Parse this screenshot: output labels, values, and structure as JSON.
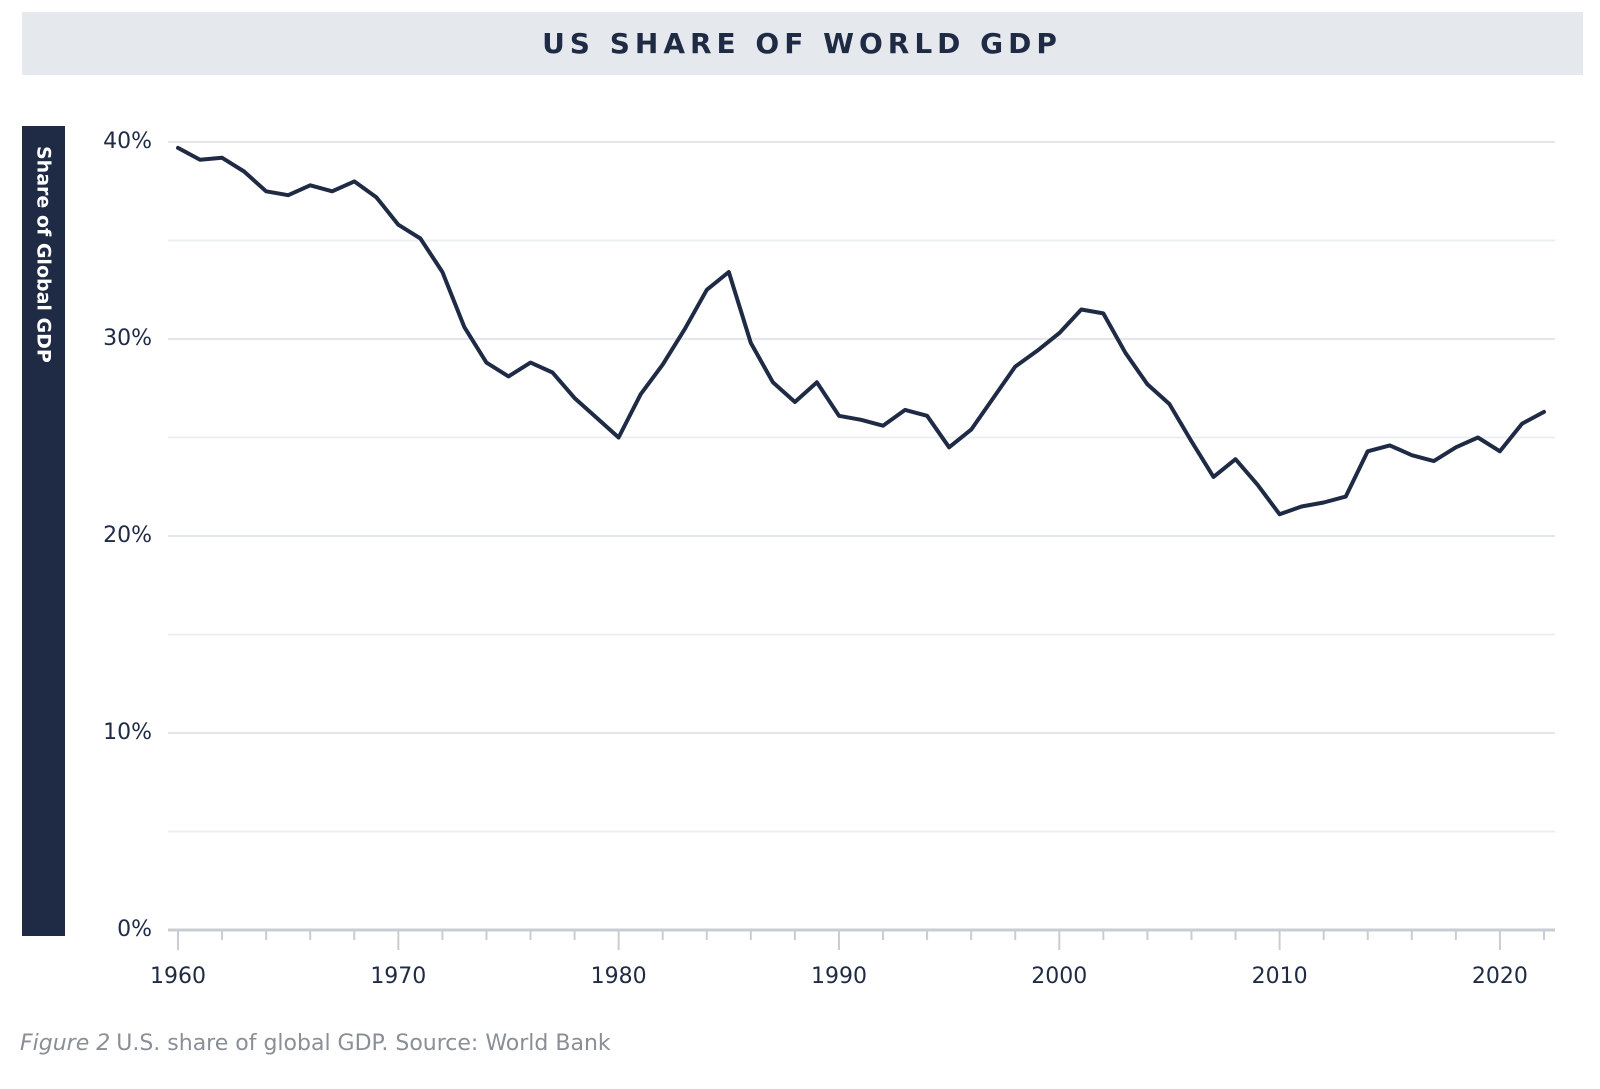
{
  "chart_data": {
    "type": "line",
    "title": "US SHARE OF WORLD GDP",
    "y_label": "Share of Global GDP",
    "caption": {
      "figure": "Figure 2",
      "text": "U.S. share of global GDP.  Source: World Bank"
    },
    "x": [
      1960,
      1961,
      1962,
      1963,
      1964,
      1965,
      1966,
      1967,
      1968,
      1969,
      1970,
      1971,
      1972,
      1973,
      1974,
      1975,
      1976,
      1977,
      1978,
      1979,
      1980,
      1981,
      1982,
      1983,
      1984,
      1985,
      1986,
      1987,
      1988,
      1989,
      1990,
      1991,
      1992,
      1993,
      1994,
      1995,
      1996,
      1997,
      1998,
      1999,
      2000,
      2001,
      2002,
      2003,
      2004,
      2005,
      2006,
      2007,
      2008,
      2009,
      2010,
      2011,
      2012,
      2013,
      2014,
      2015,
      2016,
      2017,
      2018,
      2019,
      2020,
      2021,
      2022
    ],
    "series": [
      {
        "name": "US share",
        "color": "#1f2a44",
        "values": [
          39.7,
          39.1,
          39.2,
          38.5,
          37.5,
          37.3,
          37.8,
          37.5,
          38.0,
          37.2,
          35.8,
          35.1,
          33.4,
          30.6,
          28.8,
          28.1,
          28.8,
          28.3,
          27.0,
          26.0,
          25.0,
          27.2,
          28.7,
          30.5,
          32.5,
          33.4,
          29.8,
          27.8,
          26.8,
          27.8,
          26.1,
          25.9,
          25.6,
          26.4,
          26.1,
          24.5,
          25.4,
          27.0,
          28.6,
          29.4,
          30.3,
          31.5,
          31.3,
          29.3,
          27.7,
          26.7,
          24.8,
          23.0,
          23.9,
          22.6,
          21.1,
          21.5,
          21.7,
          22.0,
          24.3,
          24.6,
          24.1,
          23.8,
          24.5,
          25.0,
          24.3,
          25.7,
          26.3
        ]
      }
    ],
    "xlim": [
      1960,
      2022.5
    ],
    "xticks": [
      1960,
      1970,
      1980,
      1990,
      2000,
      2010,
      2020
    ],
    "xminor_ticks": [
      1962,
      1964,
      1966,
      1968,
      1972,
      1974,
      1976,
      1978,
      1982,
      1984,
      1986,
      1988,
      1992,
      1994,
      1996,
      1998,
      2002,
      2004,
      2006,
      2008,
      2012,
      2014,
      2016,
      2018,
      2022
    ],
    "ylim": [
      0,
      40
    ],
    "yticks": [
      {
        "value": 0,
        "label": "0%"
      },
      {
        "value": 10,
        "label": "10%"
      },
      {
        "value": 20,
        "label": "20%"
      },
      {
        "value": 30,
        "label": "30%"
      },
      {
        "value": 40,
        "label": "40%"
      }
    ],
    "yminor_grid": [
      5,
      15,
      25,
      35
    ],
    "grid": true
  }
}
